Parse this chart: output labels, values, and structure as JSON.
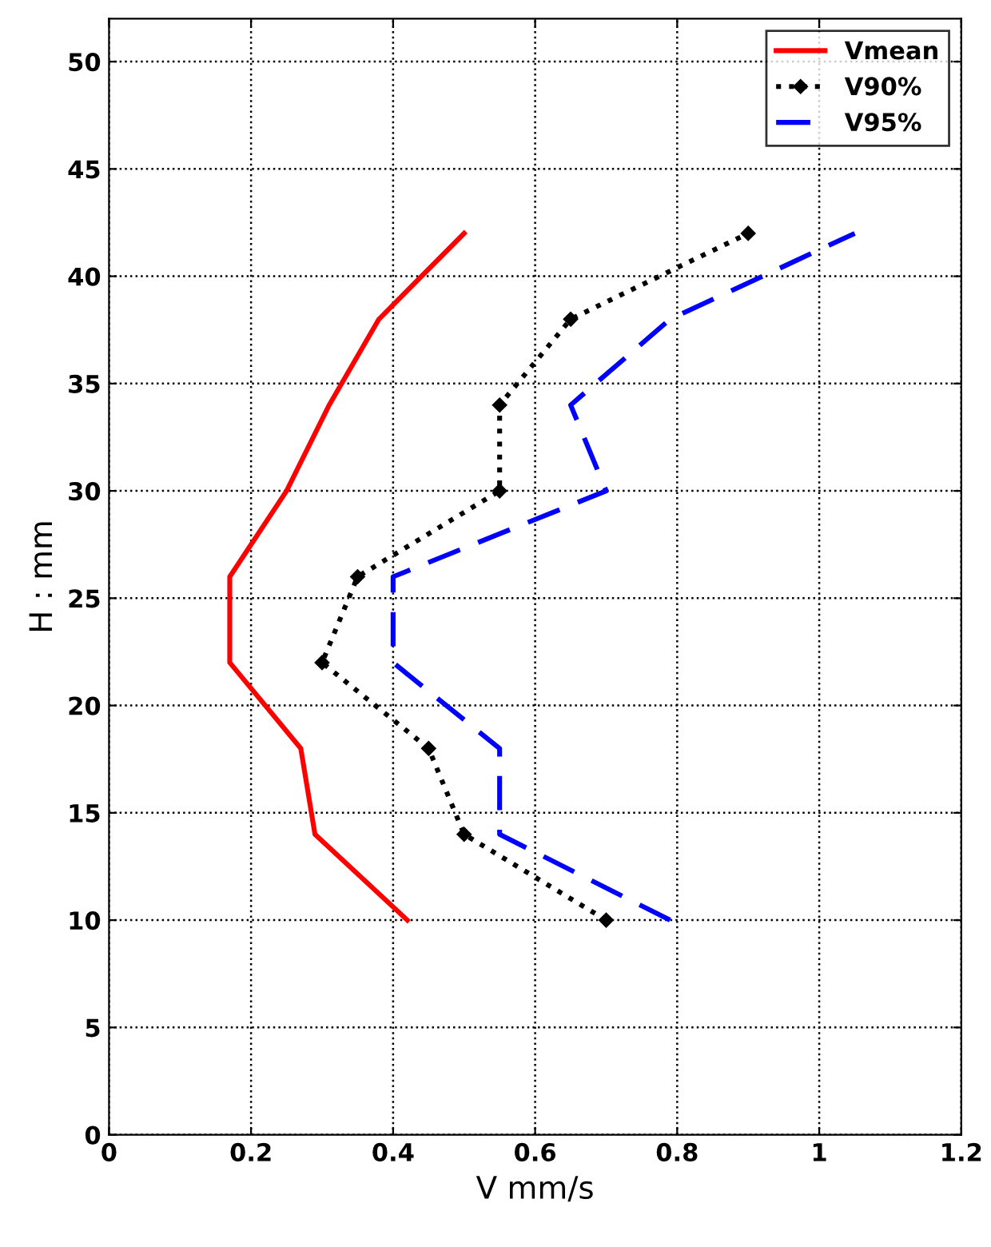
{
  "chart_data": {
    "type": "line",
    "xlabel": "V mm/s",
    "ylabel": "H : mm",
    "xlim": [
      0,
      1.2
    ],
    "xticks": [
      0,
      0.2,
      0.4,
      0.6,
      0.8,
      1,
      1.2
    ],
    "ylim": [
      0,
      52
    ],
    "yticks": [
      0,
      5,
      10,
      15,
      20,
      25,
      30,
      35,
      40,
      45,
      50
    ],
    "grid": true,
    "legend": "top right",
    "series": [
      {
        "name": "Vmean",
        "color": "#ff0000",
        "line_style": "solid",
        "marker": "none",
        "x": [
          0.42,
          0.29,
          0.27,
          0.17,
          0.17,
          0.25,
          0.31,
          0.38,
          0.5
        ],
        "values": [
          10,
          14,
          18,
          22,
          26,
          30,
          34,
          38,
          42
        ]
      },
      {
        "name": "V90%",
        "color": "#000000",
        "line_style": "dotted",
        "marker": "diamond",
        "x": [
          0.7,
          0.5,
          0.45,
          0.3,
          0.35,
          0.55,
          0.55,
          0.65,
          0.9
        ],
        "values": [
          10,
          14,
          18,
          22,
          26,
          30,
          34,
          38,
          42
        ]
      },
      {
        "name": "V95%",
        "color": "#0000ff",
        "line_style": "dashed",
        "marker": "none",
        "x": [
          0.79,
          0.55,
          0.55,
          0.4,
          0.4,
          0.7,
          0.65,
          0.79,
          1.05
        ],
        "values": [
          10,
          14,
          18,
          22,
          26,
          30,
          34,
          38,
          42
        ]
      }
    ]
  }
}
